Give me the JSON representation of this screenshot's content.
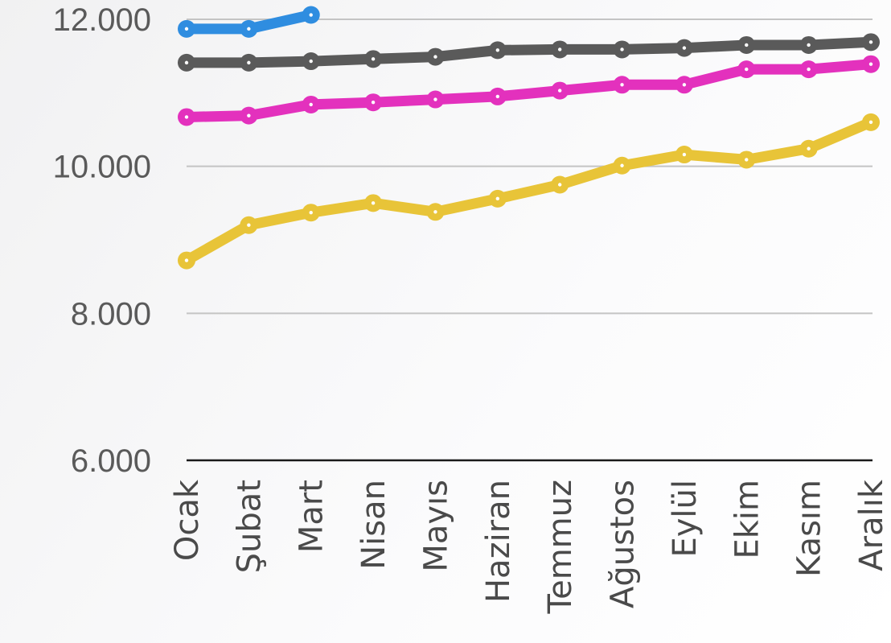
{
  "chart_data": {
    "type": "line",
    "title": "",
    "xlabel": "",
    "ylabel": "",
    "ylim": [
      6000,
      12000
    ],
    "y_ticks": [
      {
        "value": 6000,
        "label": "6.000"
      },
      {
        "value": 8000,
        "label": "8.000"
      },
      {
        "value": 10000,
        "label": "10.000"
      },
      {
        "value": 12000,
        "label": "12.000"
      }
    ],
    "grid": true,
    "legend": "none",
    "categories": [
      "Ocak",
      "Şubat",
      "Mart",
      "Nisan",
      "Mayıs",
      "Haziran",
      "Temmuz",
      "Ağustos",
      "Eylül",
      "Ekim",
      "Kasım",
      "Aralık"
    ],
    "series": [
      {
        "color": "#2f8de0",
        "values": [
          11870,
          11870,
          12060,
          null,
          null,
          null,
          null,
          null,
          null,
          null,
          null,
          null
        ]
      },
      {
        "color": "#5a5a5a",
        "values": [
          11410,
          11410,
          11430,
          11460,
          11490,
          11580,
          11590,
          11590,
          11610,
          11650,
          11650,
          11690
        ]
      },
      {
        "color": "#e331bd",
        "values": [
          10670,
          10690,
          10840,
          10870,
          10910,
          10950,
          11030,
          11110,
          11110,
          11320,
          11320,
          11390
        ]
      },
      {
        "color": "#e8c438",
        "values": [
          8720,
          9200,
          9370,
          9500,
          9380,
          9560,
          9750,
          10010,
          10160,
          10090,
          10240,
          10600
        ]
      }
    ]
  }
}
